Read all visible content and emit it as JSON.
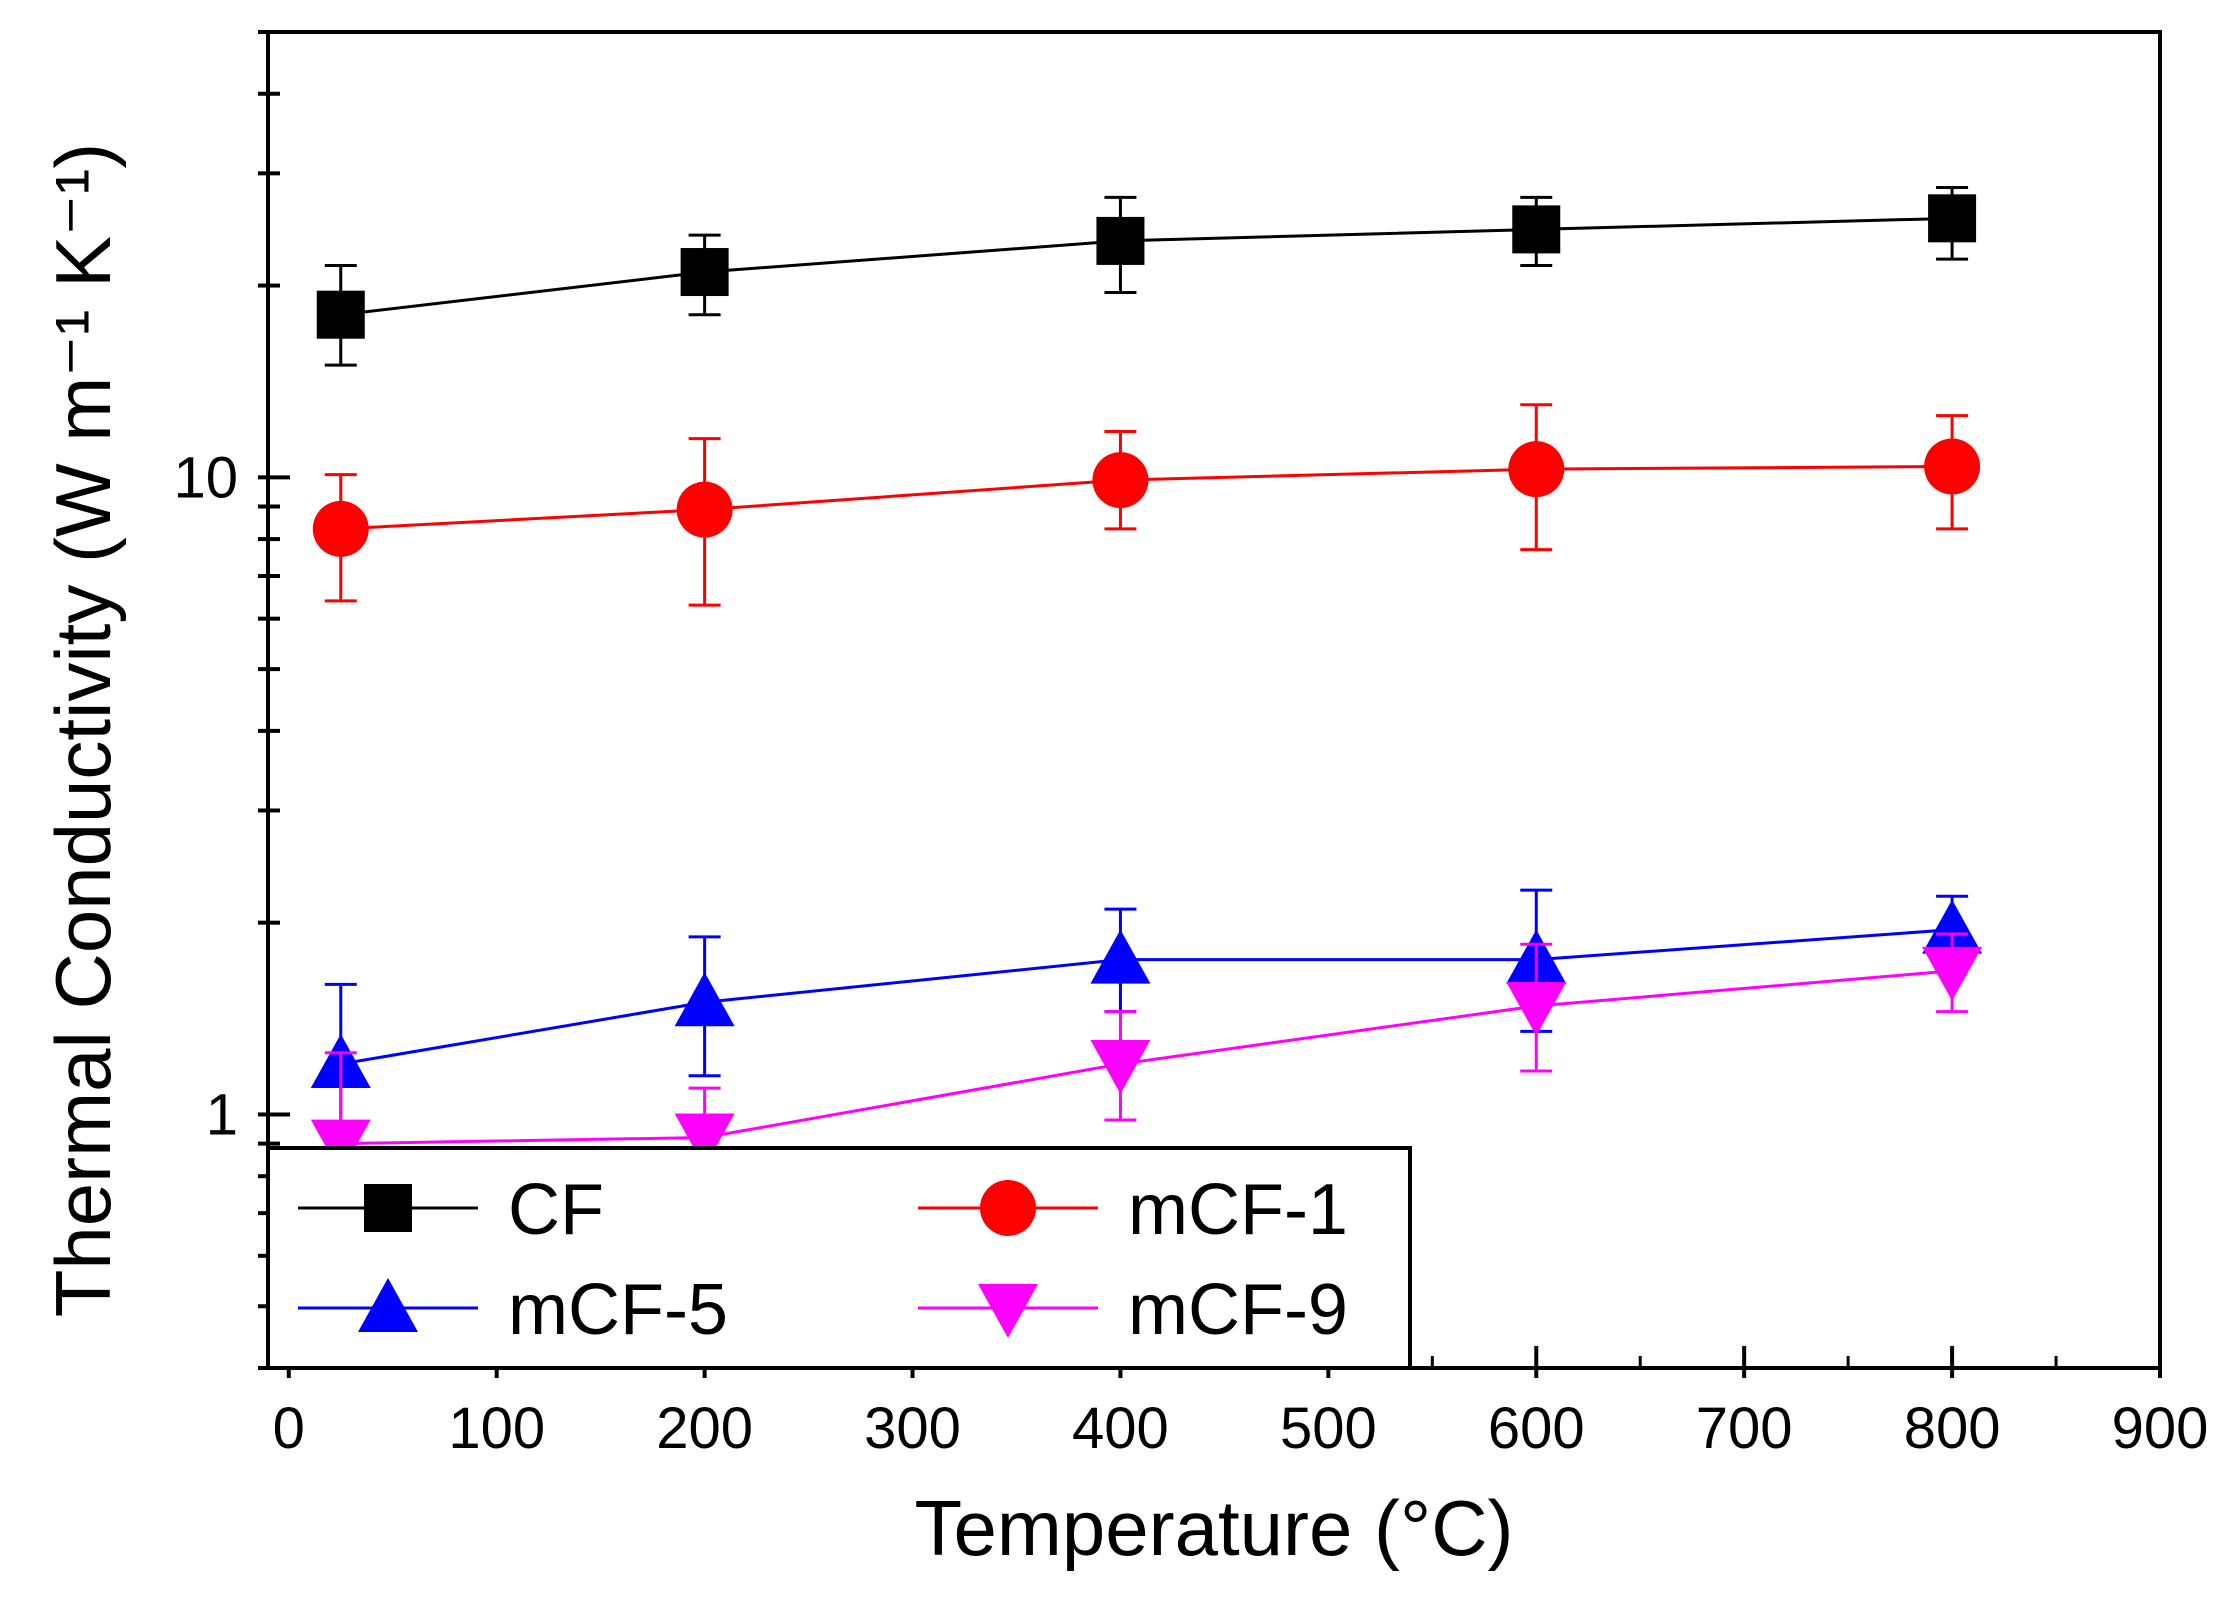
{
  "chart_data": {
    "type": "line",
    "xlabel": "Temperature (°C)",
    "ylabel": "Thermal Conductivity (W m⁻¹ K⁻¹)",
    "xlim": [
      -10,
      900
    ],
    "ylim": [
      0.4,
      50
    ],
    "y_scale": "log",
    "x_ticks": [
      "0",
      "100",
      "200",
      "300",
      "400",
      "500",
      "600",
      "700",
      "800",
      "900"
    ],
    "y_ticks": [
      "1",
      "10"
    ],
    "grid": false,
    "legend_placement": "bottom-left",
    "x": [
      25,
      200,
      400,
      600,
      800
    ],
    "series": [
      {
        "name": "CF",
        "marker": "square",
        "color": "#000000",
        "values": [
          18.0,
          21.0,
          23.5,
          24.5,
          25.5
        ],
        "err_low": [
          15.0,
          18.0,
          19.5,
          21.5,
          22.0
        ],
        "err_high": [
          21.5,
          24.0,
          27.5,
          27.5,
          28.5
        ]
      },
      {
        "name": "mCF-1",
        "marker": "circle",
        "color": "#ff0000",
        "values": [
          8.3,
          8.9,
          9.9,
          10.3,
          10.4
        ],
        "err_low": [
          6.4,
          6.3,
          8.3,
          7.7,
          8.3
        ],
        "err_high": [
          10.1,
          11.5,
          11.8,
          13.0,
          12.5
        ]
      },
      {
        "name": "mCF-5",
        "marker": "triangle-up",
        "color": "#0000ff",
        "values": [
          1.2,
          1.5,
          1.75,
          1.75,
          1.95
        ],
        "err_low": [
          0.85,
          1.15,
          1.45,
          1.35,
          1.75
        ],
        "err_high": [
          1.6,
          1.9,
          2.1,
          2.25,
          2.2
        ]
      },
      {
        "name": "mCF-9",
        "marker": "triangle-down",
        "color": "#ff00ff",
        "values": [
          0.9,
          0.92,
          1.2,
          1.48,
          1.68
        ],
        "err_low": [
          0.55,
          0.73,
          0.98,
          1.17,
          1.45
        ],
        "err_high": [
          1.25,
          1.1,
          1.45,
          1.85,
          1.92
        ]
      }
    ]
  }
}
